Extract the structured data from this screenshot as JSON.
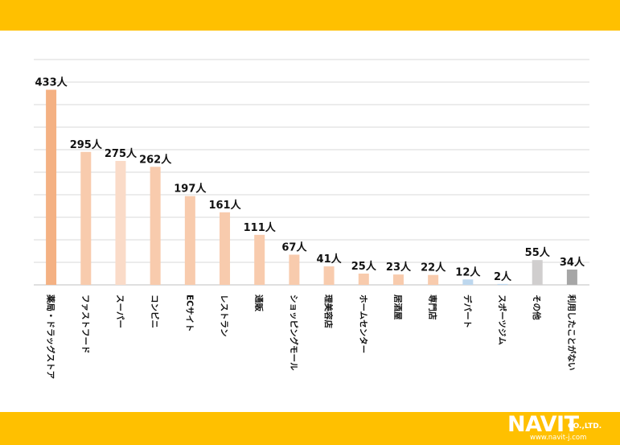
{
  "colors": {
    "band": "#FFC000",
    "gridline": "#D9D9D9",
    "baseline": "#BFBFBF"
  },
  "logo": {
    "main_text": "NAVIT",
    "company_suffix": "CO.,LTD.",
    "url": "www.navit-j.com"
  },
  "chart_data": {
    "type": "bar",
    "orientation": "vertical",
    "ylim": [
      0,
      500
    ],
    "grid": true,
    "legend": "none",
    "unit": "人",
    "categories": [
      "薬局・ドラッグストア",
      "ファストフード",
      "スーパー",
      "コンビニ",
      "ECサイト",
      "レストラン",
      "通販",
      "ショッピングモール",
      "理美容店",
      "ホームセンター",
      "居酒屋",
      "専門店",
      "デパート",
      "スポーツジム",
      "その他",
      "利用したことがない"
    ],
    "values": [
      433,
      295,
      275,
      262,
      197,
      161,
      111,
      67,
      41,
      25,
      23,
      22,
      12,
      2,
      55,
      34
    ],
    "value_labels": [
      "433人",
      "295人",
      "275人",
      "262人",
      "197人",
      "161人",
      "111人",
      "67人",
      "41人",
      "25人",
      "23人",
      "22人",
      "12人",
      "2人",
      "55人",
      "34人"
    ],
    "bar_colors": [
      "#F4B183",
      "#F8CBAD",
      "#FADBC8",
      "#F8CBAD",
      "#F8CBAD",
      "#F8CBAD",
      "#F8CBAD",
      "#F8CBAD",
      "#F8CBAD",
      "#F8CBAD",
      "#F8CBAD",
      "#F8CBAD",
      "#BDD7EE",
      "#BDD7EE",
      "#D0CECE",
      "#A6A6A6"
    ]
  }
}
